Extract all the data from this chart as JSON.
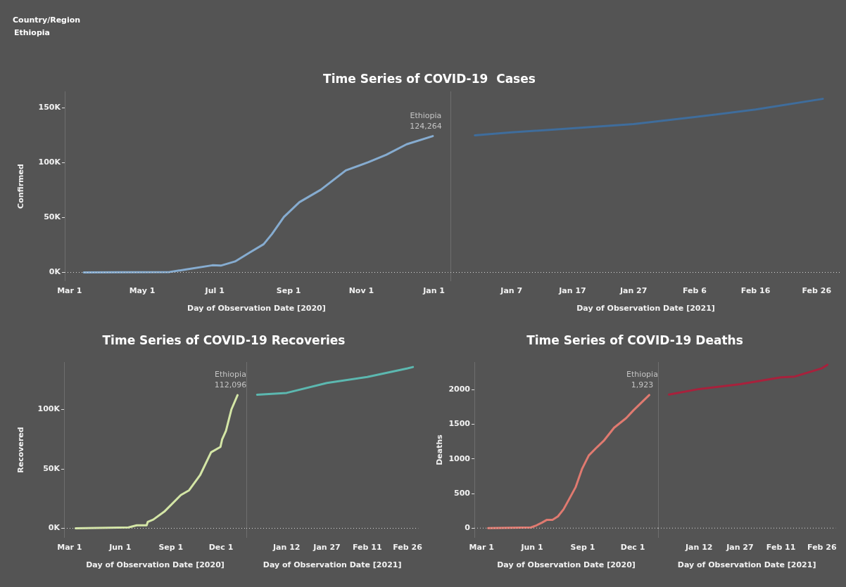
{
  "chart_data": [
    {
      "type": "other",
      "title": "Country/Region",
      "annotations": [
        "Ethiopia"
      ]
    },
    {
      "type": "line",
      "title": "Time Series of COVID-19  Cases",
      "ylabel": "Confirmed",
      "xlabel": "Day of Observation Date [2020]",
      "marker": "none",
      "grid": false,
      "xlim": [
        "2020-02-26",
        "2021-01-13"
      ],
      "xticks": [
        {
          "value": "2020-03-01",
          "label": "Mar 1"
        },
        {
          "value": "2020-05-01",
          "label": "May 1"
        },
        {
          "value": "2020-07-01",
          "label": "Jul 1"
        },
        {
          "value": "2020-09-01",
          "label": "Sep 1"
        },
        {
          "value": "2020-11-01",
          "label": "Nov 1"
        },
        {
          "value": "2021-01-01",
          "label": "Jan 1"
        }
      ],
      "ylim": [
        -8000,
        165000
      ],
      "yticks": [
        {
          "value": 0,
          "label": "0K"
        },
        {
          "value": 50000,
          "label": "50K"
        },
        {
          "value": 100000,
          "label": "100K"
        },
        {
          "value": 150000,
          "label": "150K"
        }
      ],
      "ref_lines": [
        {
          "axis": "y",
          "value": 0,
          "color": "#d8d8d8",
          "line_style": "dotted"
        }
      ],
      "annotations": [
        {
          "text": "Ethiopia\n124,264",
          "x": "2020-12-31",
          "y": 124264
        }
      ],
      "series": [
        {
          "color": "#86acd0",
          "x": [
            "2020-03-13",
            "2020-04-15",
            "2020-05-24",
            "2020-06-07",
            "2020-06-29",
            "2020-07-06",
            "2020-07-18",
            "2020-07-30",
            "2020-08-11",
            "2020-08-18",
            "2020-08-28",
            "2020-09-10",
            "2020-09-28",
            "2020-10-19",
            "2020-11-07",
            "2020-11-22",
            "2020-12-09",
            "2020-12-31"
          ],
          "values": [
            0,
            100,
            400,
            2700,
            6500,
            6200,
            10000,
            18000,
            25700,
            35000,
            50500,
            64000,
            75400,
            93000,
            100500,
            107300,
            116800,
            124264
          ]
        }
      ]
    },
    {
      "type": "line",
      "xlabel": "Day of Observation Date [2021]",
      "marker": "none",
      "grid": false,
      "tick_labels": "x",
      "ylim": [
        -8000,
        165000
      ],
      "xlim": [
        "2020-12-28",
        "2021-03-02"
      ],
      "xticks": [
        {
          "value": "2021-01-07",
          "label": "Jan 7"
        },
        {
          "value": "2021-01-17",
          "label": "Jan 17"
        },
        {
          "value": "2021-01-27",
          "label": "Jan 27"
        },
        {
          "value": "2021-02-06",
          "label": "Feb 6"
        },
        {
          "value": "2021-02-16",
          "label": "Feb 16"
        },
        {
          "value": "2021-02-26",
          "label": "Feb 26"
        }
      ],
      "ref_lines": [
        {
          "axis": "y",
          "value": 0,
          "color": "#d8d8d8",
          "line_style": "dotted"
        }
      ],
      "series": [
        {
          "color": "#3f6d9c",
          "x": [
            "2021-01-01",
            "2021-01-07",
            "2021-01-17",
            "2021-01-27",
            "2021-02-06",
            "2021-02-16",
            "2021-02-27"
          ],
          "values": [
            125000,
            127600,
            131400,
            135200,
            141600,
            148500,
            158200
          ]
        }
      ]
    },
    {
      "type": "line",
      "title": "Time Series of COVID-19 Recoveries",
      "ylabel": "Recovered",
      "xlabel": "Day of Observation Date [2020]",
      "marker": "none",
      "grid": false,
      "xlim": [
        "2020-02-20",
        "2021-01-16"
      ],
      "xticks": [
        {
          "value": "2020-03-01",
          "label": "Mar 1"
        },
        {
          "value": "2020-06-01",
          "label": "Jun 1"
        },
        {
          "value": "2020-09-01",
          "label": "Sep 1"
        },
        {
          "value": "2020-12-01",
          "label": "Dec 1"
        }
      ],
      "ylim": [
        -8000,
        140000
      ],
      "yticks": [
        {
          "value": 0,
          "label": "0K"
        },
        {
          "value": 50000,
          "label": "50K"
        },
        {
          "value": 100000,
          "label": "100K"
        }
      ],
      "ref_lines": [
        {
          "axis": "y",
          "value": 0,
          "color": "#d8d8d8",
          "line_style": "dotted"
        }
      ],
      "annotations": [
        {
          "text": "Ethiopia\n112,096",
          "x": "2020-12-31",
          "y": 112096
        }
      ],
      "series": [
        {
          "color": "#d4e6a6",
          "x": [
            "2020-03-12",
            "2020-06-16",
            "2020-07-01",
            "2020-07-19",
            "2020-07-21",
            "2020-07-31",
            "2020-08-20",
            "2020-09-19",
            "2020-10-04",
            "2020-10-24",
            "2020-11-13",
            "2020-11-30",
            "2020-12-03",
            "2020-12-10",
            "2020-12-20",
            "2020-12-31"
          ],
          "values": [
            0,
            700,
            2500,
            2500,
            5400,
            7300,
            14000,
            28000,
            32000,
            44700,
            64000,
            68500,
            74800,
            82000,
            100200,
            112096
          ]
        }
      ]
    },
    {
      "type": "line",
      "xlabel": "Day of Observation Date [2021]",
      "marker": "none",
      "grid": false,
      "tick_labels": "x",
      "ylim": [
        -8000,
        140000
      ],
      "xlim": [
        "2020-12-28",
        "2021-03-02"
      ],
      "xticks": [
        {
          "value": "2021-01-12",
          "label": "Jan 12"
        },
        {
          "value": "2021-01-27",
          "label": "Jan 27"
        },
        {
          "value": "2021-02-11",
          "label": "Feb 11"
        },
        {
          "value": "2021-02-26",
          "label": "Feb 26"
        }
      ],
      "ref_lines": [
        {
          "axis": "y",
          "value": 0,
          "color": "#d8d8d8",
          "line_style": "dotted"
        }
      ],
      "series": [
        {
          "color": "#5cb8b0",
          "x": [
            "2021-01-01",
            "2021-01-12",
            "2021-01-27",
            "2021-02-11",
            "2021-02-26",
            "2021-02-28"
          ],
          "values": [
            112500,
            114000,
            122400,
            127400,
            134700,
            135800
          ]
        }
      ]
    },
    {
      "type": "line",
      "title": "Time Series of COVID-19 Deaths",
      "ylabel": "Deaths",
      "xlabel": "Day of Observation Date [2020]",
      "marker": "none",
      "grid": false,
      "xlim": [
        "2020-02-17",
        "2021-01-16"
      ],
      "xticks": [
        {
          "value": "2020-03-01",
          "label": "Mar 1"
        },
        {
          "value": "2020-06-01",
          "label": "Jun 1"
        },
        {
          "value": "2020-09-01",
          "label": "Sep 1"
        },
        {
          "value": "2020-12-01",
          "label": "Dec 1"
        }
      ],
      "ylim": [
        -140,
        2400
      ],
      "yticks": [
        0,
        500,
        1000,
        1500,
        2000
      ],
      "ref_lines": [
        {
          "axis": "y",
          "value": 0,
          "color": "#d8d8d8",
          "line_style": "dotted"
        }
      ],
      "annotations": [
        {
          "text": "Ethiopia\n1,923",
          "x": "2020-12-31",
          "y": 1923
        }
      ],
      "series": [
        {
          "color": "#e07a70",
          "x": [
            "2020-03-13",
            "2020-05-30",
            "2020-06-09",
            "2020-06-19",
            "2020-06-28",
            "2020-07-08",
            "2020-07-18",
            "2020-07-28",
            "2020-08-06",
            "2020-08-19",
            "2020-08-31",
            "2020-09-12",
            "2020-09-27",
            "2020-10-09",
            "2020-10-28",
            "2020-11-19",
            "2020-12-02",
            "2020-12-31"
          ],
          "values": [
            0,
            10,
            40,
            80,
            120,
            120,
            170,
            270,
            400,
            590,
            860,
            1050,
            1170,
            1260,
            1450,
            1590,
            1700,
            1923
          ]
        }
      ]
    },
    {
      "type": "line",
      "xlabel": "Day of Observation Date [2021]",
      "marker": "none",
      "grid": false,
      "tick_labels": "x",
      "ylim": [
        -140,
        2400
      ],
      "xlim": [
        "2020-12-28",
        "2021-03-03"
      ],
      "xticks": [
        {
          "value": "2021-01-12",
          "label": "Jan 12"
        },
        {
          "value": "2021-01-27",
          "label": "Jan 27"
        },
        {
          "value": "2021-02-11",
          "label": "Feb 11"
        },
        {
          "value": "2021-02-26",
          "label": "Feb 26"
        }
      ],
      "ref_lines": [
        {
          "axis": "y",
          "value": 0,
          "color": "#d8d8d8",
          "line_style": "dotted"
        }
      ],
      "series": [
        {
          "color": "#a8213c",
          "x": [
            "2021-01-01",
            "2021-01-12",
            "2021-01-27",
            "2021-02-11",
            "2021-02-16",
            "2021-02-26",
            "2021-02-28"
          ],
          "values": [
            1930,
            2010,
            2080,
            2180,
            2190,
            2310,
            2360
          ]
        }
      ]
    }
  ]
}
